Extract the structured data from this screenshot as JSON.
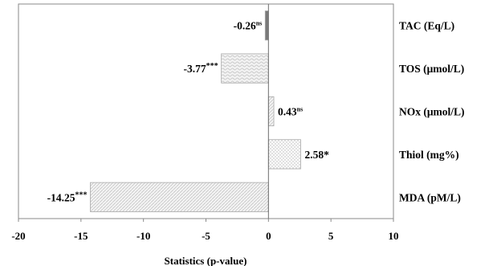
{
  "chart_data": {
    "type": "bar",
    "orientation": "horizontal",
    "xlabel": "Statistics (p-value)",
    "xlim": [
      -20,
      10
    ],
    "xticks": [
      -20,
      -15,
      -10,
      -5,
      0,
      5,
      10
    ],
    "xtick_labels": [
      "-20",
      "-15",
      "-10",
      "-5",
      "0",
      "5",
      "10"
    ],
    "categories": [
      "TAC (Eq/L)",
      "TOS (μmol/L)",
      "NOx (μmol/L)",
      "Thiol (mg%)",
      "MDA (pM/L)"
    ],
    "values": [
      -0.26,
      -3.77,
      0.43,
      2.58,
      -14.25
    ],
    "value_labels": [
      "-0.26",
      "-3.77",
      "0.43",
      "2.58",
      "-14.25"
    ],
    "significance": [
      "ns",
      "***",
      "ns",
      "*",
      "***"
    ],
    "grid": false,
    "legend": "none"
  }
}
